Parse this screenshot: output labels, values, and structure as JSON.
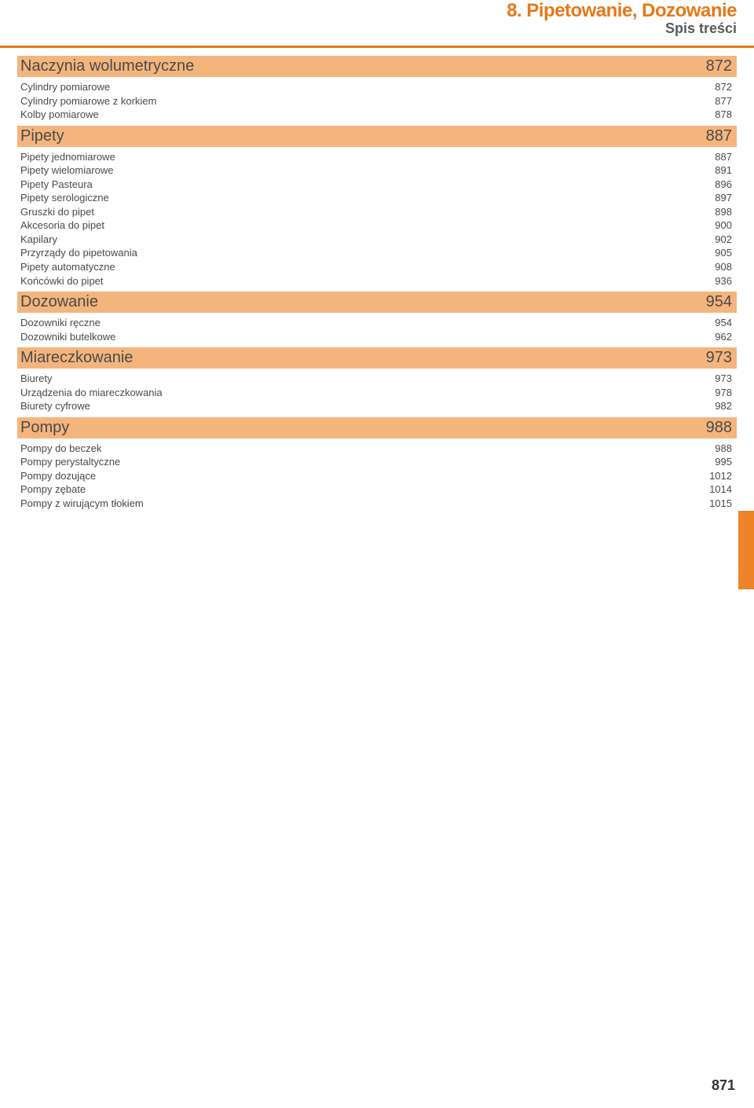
{
  "header": {
    "chapter": "8. Pipetowanie, Dozowanie",
    "subtitle": "Spis treści"
  },
  "colors": {
    "accent": "#e77817",
    "section_bg": "#f4b57d",
    "text": "#4a4a4a",
    "tab": "#ee8327"
  },
  "sections": [
    {
      "title": "Naczynia wolumetryczne",
      "page": "872",
      "items": [
        {
          "label": "Cylindry pomiarowe",
          "page": "872"
        },
        {
          "label": "Cylindry pomiarowe z korkiem",
          "page": "877"
        },
        {
          "label": "Kolby pomiarowe",
          "page": "878"
        }
      ]
    },
    {
      "title": "Pipety",
      "page": "887",
      "items": [
        {
          "label": "Pipety jednomiarowe",
          "page": "887"
        },
        {
          "label": "Pipety wielomiarowe",
          "page": "891"
        },
        {
          "label": "Pipety Pasteura",
          "page": "896"
        },
        {
          "label": "Pipety serologiczne",
          "page": "897"
        },
        {
          "label": "Gruszki do pipet",
          "page": "898"
        },
        {
          "label": "Akcesoria do pipet",
          "page": "900"
        },
        {
          "label": "Kapilary",
          "page": "902"
        },
        {
          "label": "Przyrządy do pipetowania",
          "page": "905"
        },
        {
          "label": "Pipety automatyczne",
          "page": "908"
        },
        {
          "label": "Końcówki do pipet",
          "page": "936"
        }
      ]
    },
    {
      "title": "Dozowanie",
      "page": "954",
      "items": [
        {
          "label": "Dozowniki ręczne",
          "page": "954"
        },
        {
          "label": "Dozowniki butelkowe",
          "page": "962"
        }
      ]
    },
    {
      "title": "Miareczkowanie",
      "page": "973",
      "items": [
        {
          "label": "Biurety",
          "page": "973"
        },
        {
          "label": "Urządzenia do miareczkowania",
          "page": "978"
        },
        {
          "label": "Biurety cyfrowe",
          "page": "982"
        }
      ]
    },
    {
      "title": "Pompy",
      "page": "988",
      "items": [
        {
          "label": "Pompy do beczek",
          "page": "988"
        },
        {
          "label": "Pompy perystaltyczne",
          "page": "995"
        },
        {
          "label": "Pompy dozujące",
          "page": "1012"
        },
        {
          "label": "Pompy zębate",
          "page": "1014"
        },
        {
          "label": "Pompy z wirującym tłokiem",
          "page": "1015"
        }
      ]
    }
  ],
  "page_number": "871"
}
